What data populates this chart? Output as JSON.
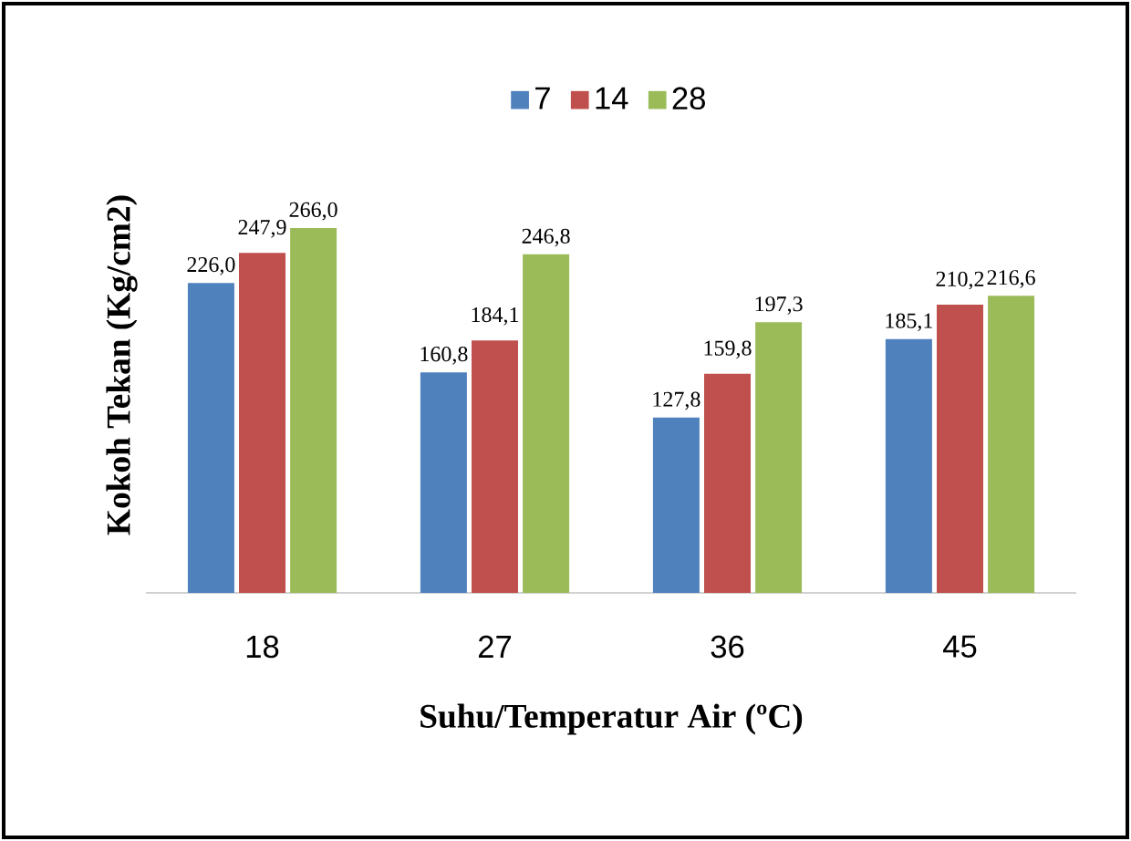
{
  "chart_data": {
    "type": "bar",
    "xlabel": "Suhu/Temperatur Air (ºC)",
    "ylabel": "Kokoh Tekan (Kg/cm2)",
    "categories": [
      "18",
      "27",
      "36",
      "45"
    ],
    "series": [
      {
        "name": "7",
        "color": "#4f81bd",
        "values": [
          226.0,
          160.8,
          127.8,
          185.1
        ],
        "value_labels": [
          "226,0",
          "160,8",
          "127,8",
          "185,1"
        ]
      },
      {
        "name": "14",
        "color": "#c0504d",
        "values": [
          247.9,
          184.1,
          159.8,
          210.2
        ],
        "value_labels": [
          "247,9",
          "184,1",
          "159,8",
          "210,2"
        ]
      },
      {
        "name": "28",
        "color": "#9bbb59",
        "values": [
          266.0,
          246.8,
          197.3,
          216.6
        ],
        "value_labels": [
          "266,0",
          "246,8",
          "197,3",
          "216,6"
        ]
      }
    ],
    "legend": "top"
  }
}
